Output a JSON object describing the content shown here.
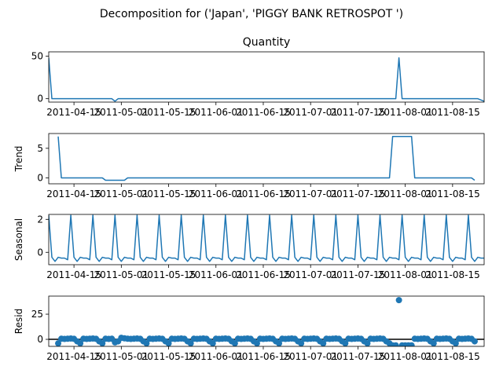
{
  "figure": {
    "suptitle": "Decomposition for ('Japan', 'PIGGY BANK RETROSPOT ')"
  },
  "colors": {
    "line": "#1f77b4",
    "zero_line": "#000000"
  },
  "chart_data": [
    {
      "type": "line",
      "title": "Quantity",
      "ylabel": "",
      "ylim": [
        -4,
        55
      ],
      "yticks": [
        0,
        50
      ],
      "xlim": [
        0,
        138
      ],
      "xtick_positions": [
        8,
        23,
        38,
        53,
        68,
        83,
        98,
        113,
        128
      ],
      "xtick_labels": [
        "2011-04-15",
        "2011-05-01",
        "2011-05-15",
        "2011-06-01",
        "2011-06-15",
        "2011-07-01",
        "2011-07-15",
        "2011-08-01",
        "2011-08-15"
      ],
      "x": [
        0,
        1,
        20,
        21,
        22,
        110,
        111,
        112,
        136,
        138
      ],
      "y": [
        48,
        0,
        0,
        -3,
        0,
        0,
        48,
        0,
        0,
        -3
      ]
    },
    {
      "type": "line",
      "title": "",
      "ylabel": "Trend",
      "ylim": [
        -1,
        7.5
      ],
      "yticks": [
        0,
        5
      ],
      "xlim": [
        0,
        138
      ],
      "xtick_positions": [
        8,
        23,
        38,
        53,
        68,
        83,
        98,
        113,
        128
      ],
      "xtick_labels": [
        "2011-04-15",
        "2011-05-01",
        "2011-05-15",
        "2011-06-01",
        "2011-06-15",
        "2011-07-01",
        "2011-07-15",
        "2011-08-01",
        "2011-08-15"
      ],
      "x": [
        3,
        4,
        17,
        18,
        24,
        25,
        108,
        109,
        115,
        116,
        134,
        135
      ],
      "y": [
        7,
        0,
        0,
        -0.4,
        -0.4,
        0,
        0,
        7,
        7,
        0,
        0,
        -0.4
      ]
    },
    {
      "type": "line",
      "title": "",
      "ylabel": "Seasonal",
      "ylim": [
        -0.75,
        2.3
      ],
      "yticks": [
        0,
        2
      ],
      "xlim": [
        0,
        138
      ],
      "xtick_positions": [
        8,
        23,
        38,
        53,
        68,
        83,
        98,
        113,
        128
      ],
      "xtick_labels": [
        "2011-04-15",
        "2011-05-01",
        "2011-05-15",
        "2011-06-01",
        "2011-06-15",
        "2011-07-01",
        "2011-07-15",
        "2011-08-01",
        "2011-08-15"
      ],
      "period": 7,
      "start": 0,
      "end": 138,
      "pattern": [
        2.25,
        -0.3,
        -0.55,
        -0.3,
        -0.35,
        -0.35,
        -0.45
      ]
    },
    {
      "type": "scatter",
      "title": "",
      "ylabel": "Resid",
      "ylim": [
        -7,
        43
      ],
      "yticks": [
        0,
        25
      ],
      "xlim": [
        0,
        138
      ],
      "xtick_positions": [
        8,
        23,
        38,
        53,
        68,
        83,
        98,
        113,
        128
      ],
      "xtick_labels": [
        "2011-04-15",
        "2011-05-01",
        "2011-05-15",
        "2011-06-01",
        "2011-06-15",
        "2011-07-01",
        "2011-07-15",
        "2011-08-01",
        "2011-08-15"
      ],
      "zero_line": true,
      "base_x_range": [
        3,
        135
      ],
      "base_pattern": [
        -4,
        0.6,
        0.4,
        0.6,
        0.8,
        0.5,
        -2
      ],
      "overrides": [
        {
          "x": 21,
          "y": -3
        },
        {
          "x": 22,
          "y": -2
        },
        {
          "x": 23,
          "y": 1.5
        },
        {
          "x": 24,
          "y": 1
        },
        {
          "x": 109,
          "y": -6
        },
        {
          "x": 110,
          "y": -6
        },
        {
          "x": 111,
          "y": 39
        },
        {
          "x": 112,
          "y": -6
        },
        {
          "x": 113,
          "y": -6
        },
        {
          "x": 114,
          "y": -6
        },
        {
          "x": 115,
          "y": -6
        }
      ]
    }
  ]
}
